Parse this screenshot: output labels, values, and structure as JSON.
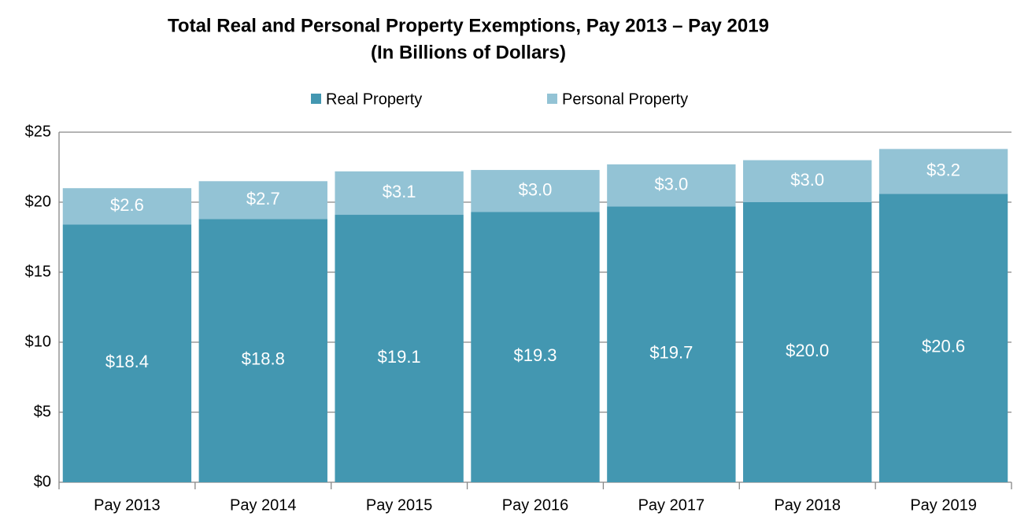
{
  "chart_data": {
    "type": "stacked_bar",
    "title": "Total Real and Personal Property Exemptions, Pay 2013 – Pay 2019",
    "subtitle": "(In Billions of Dollars)",
    "categories": [
      "Pay 2013",
      "Pay 2014",
      "Pay 2015",
      "Pay 2016",
      "Pay 2017",
      "Pay 2018",
      "Pay 2019"
    ],
    "series": [
      {
        "name": "Real Property",
        "color": "#4397b1",
        "values": [
          18.4,
          18.8,
          19.1,
          19.3,
          19.7,
          20.0,
          20.6
        ],
        "value_labels": [
          "$18.4",
          "$18.8",
          "$19.1",
          "$19.3",
          "$19.7",
          "$20.0",
          "$20.6"
        ]
      },
      {
        "name": "Personal Property",
        "color": "#93c3d5",
        "values": [
          2.6,
          2.7,
          3.1,
          3.0,
          3.0,
          3.0,
          3.2
        ],
        "value_labels": [
          "$2.6",
          "$2.7",
          "$3.1",
          "$3.0",
          "$3.0",
          "$3.0",
          "$3.2"
        ]
      }
    ],
    "ylim": [
      0,
      25
    ],
    "yticks": [
      {
        "value": 0,
        "label": "$0"
      },
      {
        "value": 5,
        "label": "$5"
      },
      {
        "value": 10,
        "label": "$10"
      },
      {
        "value": 15,
        "label": "$15"
      },
      {
        "value": 20,
        "label": "$20"
      },
      {
        "value": 25,
        "label": "$25"
      }
    ],
    "grid": true,
    "legend": "top"
  }
}
